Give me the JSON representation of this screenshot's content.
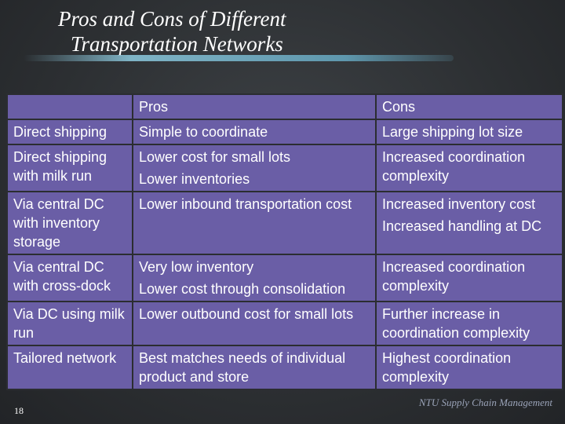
{
  "slide": {
    "title_line1": "Pros and Cons of Different",
    "title_line2": "Transportation Networks",
    "page_number": "18",
    "footer": "NTU Supply Chain Management"
  },
  "table": {
    "headers": [
      "",
      "Pros",
      "Cons"
    ],
    "rows": [
      {
        "network": "Direct shipping",
        "pros": [
          "Simple to coordinate"
        ],
        "cons": [
          "Large shipping lot size"
        ]
      },
      {
        "network": "Direct shipping with milk run",
        "pros": [
          "Lower cost for small lots",
          "Lower inventories"
        ],
        "cons": [
          "Increased coordination complexity"
        ]
      },
      {
        "network": "Via central DC with inventory storage",
        "pros": [
          "Lower inbound transportation cost"
        ],
        "cons": [
          "Increased inventory cost",
          "Increased handling at DC"
        ]
      },
      {
        "network": "Via central DC with cross-dock",
        "pros": [
          "Very low inventory",
          "Lower cost through consolidation"
        ],
        "cons": [
          "Increased coordination complexity"
        ]
      },
      {
        "network": "Via DC using milk run",
        "pros": [
          "Lower outbound cost  for small lots"
        ],
        "cons": [
          "Further increase in coordination complexity"
        ]
      },
      {
        "network": "Tailored network",
        "pros": [
          "Best matches needs of individual product and store"
        ],
        "cons": [
          "Highest coordination complexity"
        ]
      }
    ]
  }
}
